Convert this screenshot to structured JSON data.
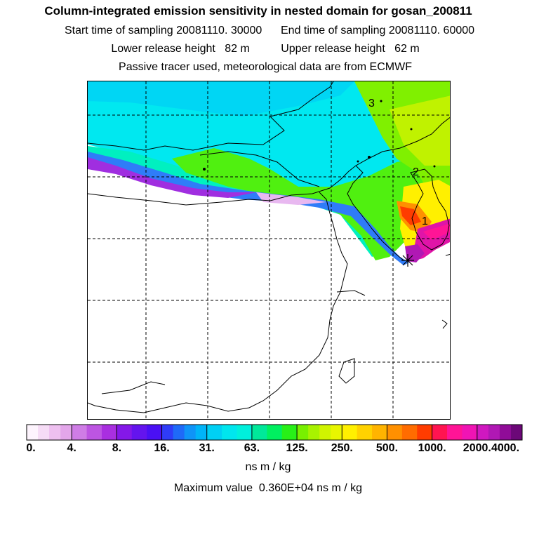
{
  "header": {
    "title": "Column-integrated emission sensitivity in nested domain for gosan_200811",
    "sampling_line": "Start time of sampling 20081110. 30000      End time of sampling 20081110. 60000",
    "release_line": "Lower release height   82 m          Upper release height   62 m",
    "tracer_line": "Passive tracer used, meteorological data are from ECMWF"
  },
  "map": {
    "labels": [
      "1",
      "2",
      "3"
    ],
    "receptor_marker": "gosan-receptor"
  },
  "colorbar": {
    "tick_labels": [
      "0.",
      "4.",
      "8.",
      "16.",
      "31.",
      "63.",
      "125.",
      "250.",
      "500.",
      "1000.",
      "2000.",
      "4000."
    ],
    "colors": [
      [
        "#fdf4fd",
        "#f6dcf6",
        "#eec0f0",
        "#e3a6ea"
      ],
      [
        "#cf7de6",
        "#bd55e2",
        "#a92fe0"
      ],
      [
        "#8418e8",
        "#6414ee",
        "#4a10f4"
      ],
      [
        "#2f3cf8",
        "#1f6af8",
        "#0f94f8",
        "#00b4f8"
      ],
      [
        "#00d0f4",
        "#00e6ee",
        "#00f0dc"
      ],
      [
        "#00e89a",
        "#00f060",
        "#28f018"
      ],
      [
        "#78f000",
        "#a8f200",
        "#d0f400",
        "#e8f600"
      ],
      [
        "#fff000",
        "#ffd200",
        "#ffb400"
      ],
      [
        "#ff9000",
        "#ff6c00",
        "#ff3c00"
      ],
      [
        "#ff1450",
        "#ff1496",
        "#f014b4"
      ],
      [
        "#d018c0",
        "#b018b4",
        "#900c98",
        "#6c0878"
      ]
    ],
    "units": "ns m / kg",
    "max_value_text": "Maximum value  0.360E+04 ns m / kg"
  }
}
